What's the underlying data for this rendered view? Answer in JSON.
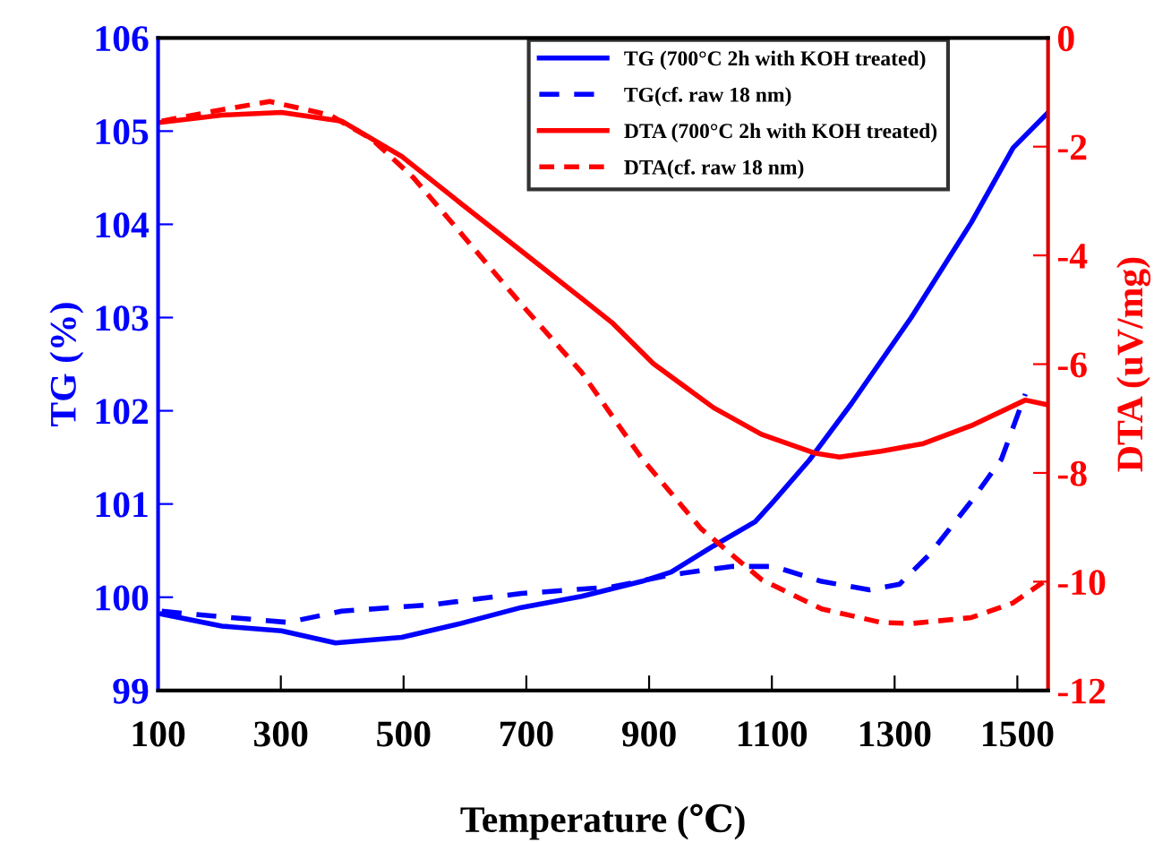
{
  "chart_data": {
    "type": "line",
    "xlabel": "Temperature (℃)",
    "ylabel": "TG (%)",
    "y2label": "DTA (uV/mg)",
    "xlim": [
      100,
      1550
    ],
    "xticks": [
      100,
      300,
      500,
      700,
      900,
      1100,
      1300,
      1500
    ],
    "ylim": [
      99,
      106
    ],
    "yticks": [
      99,
      100,
      101,
      102,
      103,
      104,
      105,
      106
    ],
    "y2lim": [
      -12,
      0
    ],
    "y2ticks": [
      -12,
      -10,
      -8,
      -6,
      -4,
      -2,
      0
    ],
    "grid": false,
    "legend": "top right",
    "marker": "none",
    "series": [
      {
        "name": "TG (700°C 2h with KOH treated)",
        "color": "#0000ff",
        "line_style": "solid",
        "x": [
          106,
          204,
          301,
          389,
          497,
          594,
          692,
          790,
          888,
          936,
          1005,
          1073,
          1103,
          1161,
          1230,
          1327,
          1425,
          1493,
          1550
        ],
        "values": [
          99.82,
          99.69,
          99.64,
          99.51,
          99.57,
          99.72,
          99.89,
          100.01,
          100.17,
          100.27,
          100.55,
          100.81,
          101.03,
          101.47,
          102.08,
          103.0,
          104.02,
          104.82,
          105.2
        ]
      },
      {
        "name": "TG(cf. raw 18 nm)",
        "color": "#0000ff",
        "line_style": "dashed",
        "x": [
          106,
          204,
          311,
          399,
          546,
          692,
          839,
          936,
          1034,
          1103,
          1181,
          1259,
          1308,
          1357,
          1425,
          1474,
          1513
        ],
        "values": [
          99.85,
          99.79,
          99.73,
          99.85,
          99.92,
          100.04,
          100.11,
          100.24,
          100.33,
          100.33,
          100.17,
          100.08,
          100.14,
          100.46,
          101.03,
          101.48,
          102.18
        ]
      },
      {
        "name": "DTA (700°C 2h with KOH treated)",
        "color": "#ff0000",
        "line_style": "solid",
        "axis": "y2",
        "x": [
          106,
          204,
          301,
          399,
          497,
          594,
          692,
          790,
          839,
          907,
          1005,
          1083,
          1171,
          1210,
          1278,
          1347,
          1425,
          1513,
          1550
        ],
        "values": [
          -1.55,
          -1.42,
          -1.37,
          -1.53,
          -2.18,
          -3.05,
          -3.92,
          -4.79,
          -5.23,
          -5.99,
          -6.8,
          -7.29,
          -7.64,
          -7.71,
          -7.6,
          -7.46,
          -7.13,
          -6.66,
          -6.75
        ]
      },
      {
        "name": "DTA(cf. raw 18 nm)",
        "color": "#ff0000",
        "line_style": "dotted",
        "axis": "y2",
        "x": [
          106,
          204,
          282,
          380,
          448,
          516,
          594,
          692,
          790,
          888,
          985,
          1083,
          1181,
          1278,
          1327,
          1425,
          1493,
          1542
        ],
        "values": [
          -1.53,
          -1.32,
          -1.17,
          -1.42,
          -1.86,
          -2.57,
          -3.6,
          -4.9,
          -6.15,
          -7.73,
          -9.03,
          -9.96,
          -10.5,
          -10.75,
          -10.77,
          -10.66,
          -10.39,
          -10.01
        ]
      }
    ]
  }
}
